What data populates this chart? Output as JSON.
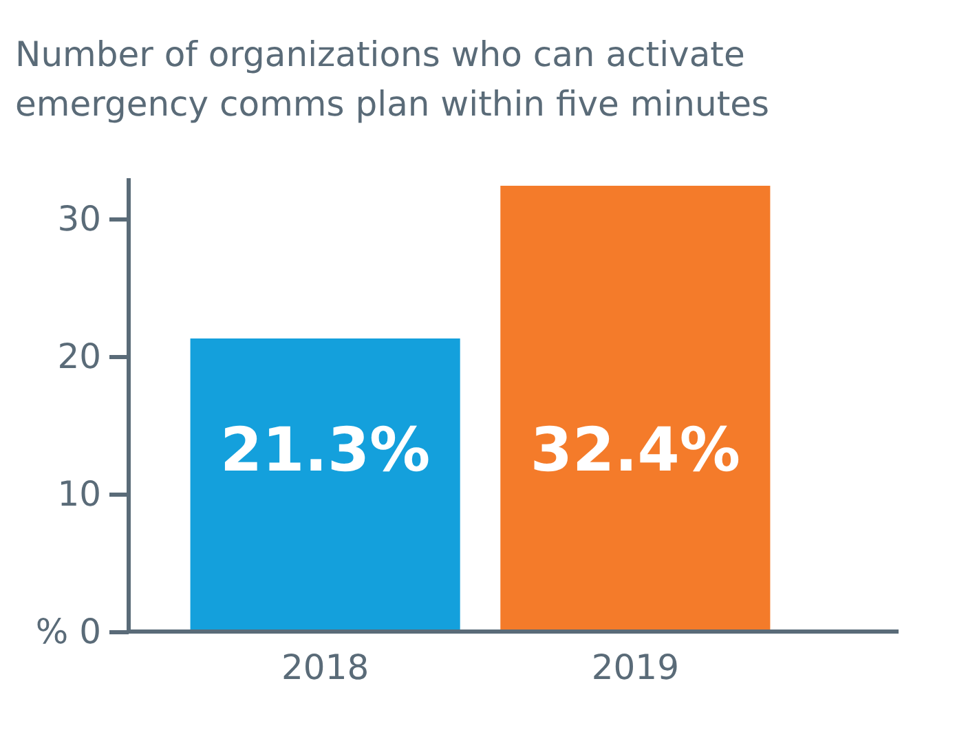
{
  "chart_data": {
    "type": "bar",
    "title": "Number of organizations who can activate\nemergency comms plan within five minutes",
    "categories": [
      "2018",
      "2019"
    ],
    "values": [
      21.3,
      32.4
    ],
    "value_labels": [
      "21.3%",
      "32.4%"
    ],
    "colors": [
      "#14a0dc",
      "#f47b2a"
    ],
    "ylim": [
      0,
      33
    ],
    "yticks": [
      {
        "value": 0,
        "label": "% 0"
      },
      10,
      20,
      30
    ],
    "grid": false
  }
}
